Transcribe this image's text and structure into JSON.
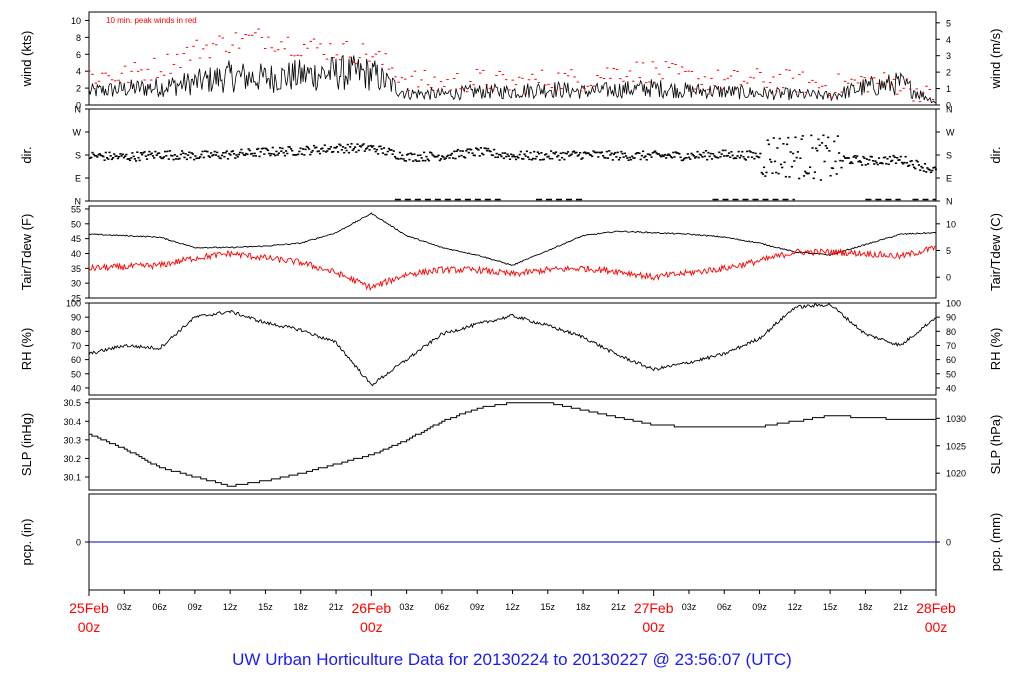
{
  "footer_title": "UW Urban Horticulture Data for 20130224  to  20130227 @ 23:56:07  (UTC)",
  "colors": {
    "line": "#000000",
    "peak": "#ff0000",
    "dew": "#ff0000",
    "precip": "#0000cc",
    "day_label": "#ff0000",
    "title": "#1a1aff"
  },
  "chart_data": [
    {
      "id": "wind",
      "type": "line",
      "ylabel": "wind (kts)",
      "ylabel_right": "wind (m/s)",
      "annotation": "10 min. peak winds in red",
      "ylim": [
        0,
        11
      ],
      "yticks": [
        "0",
        "2",
        "4",
        "6",
        "8",
        "10"
      ],
      "right_ticks": [
        "0",
        "1",
        "2",
        "3",
        "4",
        "5"
      ],
      "x_hours": [
        0,
        3,
        6,
        9,
        12,
        15,
        18,
        21,
        24,
        27,
        30,
        33,
        36,
        39,
        42,
        45,
        48,
        51,
        54,
        57,
        60,
        63,
        66,
        69,
        72
      ],
      "series": [
        {
          "values": [
            1.5,
            1.8,
            2.0,
            2.5,
            3.2,
            3.0,
            3.3,
            3.6,
            3.5,
            1.3,
            1.2,
            1.5,
            1.5,
            1.8,
            1.5,
            1.7,
            1.9,
            1.6,
            1.5,
            1.3,
            1.2,
            1.0,
            2.0,
            2.4,
            0.3
          ]
        },
        {
          "values": [
            3.5,
            3.5,
            4.5,
            6.5,
            7.5,
            8.0,
            7.0,
            6.5,
            6.0,
            3.0,
            2.5,
            3.0,
            2.5,
            3.0,
            3.0,
            4.0,
            4.0,
            3.2,
            2.8,
            3.0,
            2.8,
            2.2,
            2.8,
            2.5,
            0.5
          ]
        }
      ]
    },
    {
      "id": "dir",
      "type": "scatter",
      "ylabel": "dir.",
      "ylabel_right": "dir.",
      "ylim": [
        0,
        360
      ],
      "yticks": [
        "N",
        "E",
        "S",
        "W",
        "N"
      ],
      "x_hours": [
        0,
        3,
        6,
        9,
        12,
        15,
        18,
        21,
        24,
        27,
        30,
        33,
        36,
        39,
        42,
        45,
        48,
        51,
        54,
        57,
        60,
        63,
        66,
        69,
        72
      ],
      "series": [
        {
          "values": [
            180,
            175,
            185,
            180,
            185,
            195,
            200,
            210,
            210,
            175,
            180,
            195,
            180,
            180,
            185,
            180,
            180,
            180,
            185,
            180,
            180,
            170,
            160,
            165,
            120
          ]
        }
      ]
    },
    {
      "id": "temp",
      "type": "line",
      "ylabel": "Tair/Tdew (F)",
      "ylabel_right": "Tair/Tdew (C)",
      "ylim": [
        25,
        56
      ],
      "yticks": [
        "25",
        "30",
        "35",
        "40",
        "45",
        "50",
        "55"
      ],
      "right_ticks": [
        "0",
        "5",
        "10"
      ],
      "x_hours": [
        0,
        3,
        6,
        9,
        12,
        15,
        18,
        21,
        24,
        27,
        30,
        33,
        36,
        39,
        42,
        45,
        48,
        51,
        54,
        57,
        60,
        63,
        66,
        69,
        72
      ],
      "series": [
        {
          "name": "Tair",
          "values": [
            46.5,
            46,
            45.5,
            42,
            42,
            42.5,
            43.5,
            47,
            53.5,
            46,
            42,
            39.5,
            36,
            41,
            46,
            47.5,
            47,
            46.5,
            45.5,
            43.5,
            40.5,
            39.5,
            43,
            46.5,
            47
          ]
        },
        {
          "name": "Tdew",
          "values": [
            35,
            35.5,
            36,
            38.5,
            40,
            38.5,
            37,
            33.5,
            28.5,
            33,
            34.5,
            34.5,
            33,
            34.5,
            35,
            34,
            32,
            33.5,
            35,
            37.5,
            40.5,
            40.5,
            40,
            39,
            42
          ]
        }
      ]
    },
    {
      "id": "rh",
      "type": "line",
      "ylabel": "RH (%)",
      "ylabel_right": "RH (%)",
      "ylim": [
        35,
        100
      ],
      "yticks": [
        "40",
        "50",
        "60",
        "70",
        "80",
        "90",
        "100"
      ],
      "right_ticks": [
        "40",
        "50",
        "60",
        "70",
        "80",
        "90",
        "100"
      ],
      "x_hours": [
        0,
        3,
        6,
        9,
        12,
        15,
        18,
        21,
        24,
        27,
        30,
        33,
        36,
        39,
        42,
        45,
        48,
        51,
        54,
        57,
        60,
        63,
        66,
        69,
        72
      ],
      "series": [
        {
          "values": [
            64,
            70,
            68,
            90,
            94,
            86,
            81,
            72,
            42,
            60,
            78,
            85,
            91,
            84,
            76,
            63,
            53,
            58,
            64,
            75,
            97,
            99,
            78,
            70,
            90
          ]
        }
      ]
    },
    {
      "id": "slp",
      "type": "line",
      "ylabel": "SLP (inHg)",
      "ylabel_right": "SLP (hPa)",
      "ylim": [
        30.03,
        30.52
      ],
      "yticks": [
        "30.1",
        "30.2",
        "30.3",
        "30.4",
        "30.5"
      ],
      "right_ticks": [
        "1020",
        "1025",
        "1030"
      ],
      "x_hours": [
        0,
        3,
        6,
        9,
        12,
        15,
        18,
        21,
        24,
        27,
        30,
        33,
        36,
        39,
        42,
        45,
        48,
        51,
        54,
        57,
        60,
        63,
        66,
        69,
        72
      ],
      "series": [
        {
          "values": [
            30.33,
            30.25,
            30.15,
            30.1,
            30.05,
            30.08,
            30.12,
            30.17,
            30.22,
            30.3,
            30.4,
            30.47,
            30.5,
            30.5,
            30.46,
            30.42,
            30.38,
            30.37,
            30.37,
            30.37,
            30.4,
            30.43,
            30.42,
            30.41,
            30.41
          ]
        }
      ]
    },
    {
      "id": "pcp",
      "type": "line",
      "ylabel": "pcp. (in)",
      "ylabel_right": "pcp. (mm)",
      "ylim": [
        -1,
        1
      ],
      "yticks": [
        "0"
      ],
      "right_ticks": [
        "0"
      ],
      "x_hours": [
        0,
        72
      ],
      "series": [
        {
          "values": [
            0,
            0
          ]
        }
      ]
    }
  ],
  "x_axis": {
    "hour_ticks": [
      "03z",
      "06z",
      "09z",
      "12z",
      "15z",
      "18z",
      "21z",
      "03z",
      "06z",
      "09z",
      "12z",
      "15z",
      "18z",
      "21z",
      "03z",
      "06z",
      "09z",
      "12z",
      "15z",
      "18z",
      "21z"
    ],
    "day_labels": [
      {
        "day": "25Feb",
        "hour": "00z"
      },
      {
        "day": "26Feb",
        "hour": "00z"
      },
      {
        "day": "27Feb",
        "hour": "00z"
      },
      {
        "day": "28Feb",
        "hour": "00z"
      }
    ]
  }
}
